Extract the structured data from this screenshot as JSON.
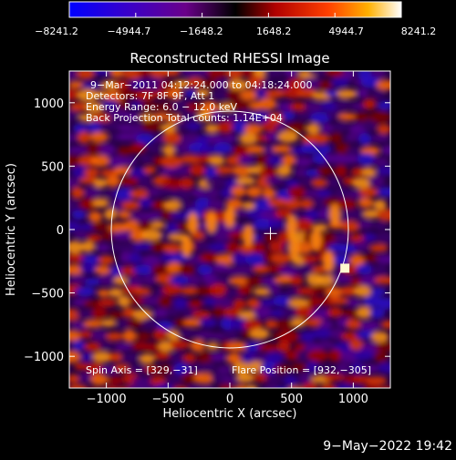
{
  "colorbar": {
    "tick_labels": [
      "−8241.2",
      "−4944.7",
      "−1648.2",
      "1648.2",
      "4944.7",
      "8241.2"
    ],
    "range": [
      -8241.2,
      8241.2
    ]
  },
  "chart_data": {
    "type": "heatmap",
    "title": "Reconstructed RHESSI Image",
    "xlabel": "Heliocentric X (arcsec)",
    "ylabel": "Heliocentric Y (arcsec)",
    "xlim": [
      -1300,
      1300
    ],
    "ylim": [
      -1250,
      1250
    ],
    "x_ticks": [
      -1000,
      -500,
      0,
      500,
      1000
    ],
    "x_tick_labels": [
      "−1000",
      "−500",
      "0",
      "500",
      "1000"
    ],
    "y_ticks": [
      1000,
      500,
      0,
      -500,
      -1000
    ],
    "y_tick_labels": [
      "1000",
      "500",
      "0",
      "−500",
      "−1000"
    ],
    "annotations": {
      "line1": "9−Mar−2011 04:12:24.000 to 04:18:24.000",
      "line2": "Detectors: 7F 8F 9F, Att 1",
      "line3": "Energy Range: 6.0 − 12.0 keV",
      "line4": "Back Projection    Total counts: 1.14E+04",
      "spin_axis": "Spin Axis = [329,−31]",
      "flare_position": "Flare Position = [932,−305]"
    },
    "solar_limb_radius_arcsec": 960,
    "spin_axis": [
      329,
      -31
    ],
    "flare_position": [
      932,
      -305
    ]
  },
  "footer": {
    "date": "9−May−2022 19:42"
  }
}
